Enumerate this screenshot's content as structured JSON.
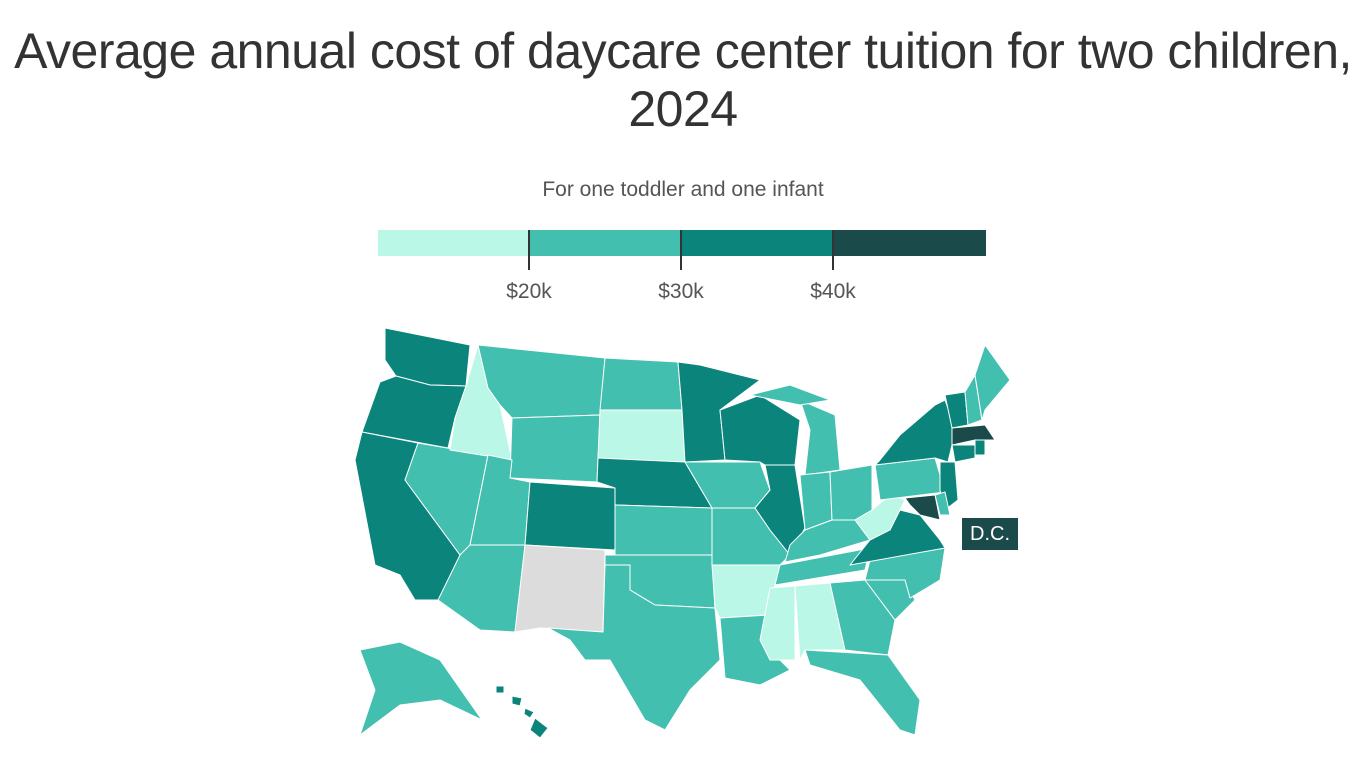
{
  "title": "Average annual cost of daycare center tuition for two children, 2024",
  "subtitle": "For one toddler and one infant",
  "legend": {
    "colors": [
      "#bbf7e6",
      "#43bfb0",
      "#0b847c",
      "#1a4a4a"
    ],
    "no_data_color": "#dcdcdc",
    "ticks": [
      "$20k",
      "$30k",
      "$40k"
    ]
  },
  "map_data": {
    "bins": [
      "Under $20k",
      "$20k–$30k",
      "$30k–$40k",
      "$40k+"
    ],
    "state_bin": {
      "WA": 2,
      "OR": 2,
      "CA": 2,
      "ID": 0,
      "NV": 1,
      "MT": 1,
      "WY": 1,
      "UT": 1,
      "AZ": 1,
      "CO": 2,
      "NM": null,
      "ND": 1,
      "SD": 0,
      "NE": 2,
      "KS": 1,
      "OK": 1,
      "TX": 1,
      "MN": 2,
      "IA": 1,
      "MO": 1,
      "AR": 0,
      "LA": 1,
      "WI": 2,
      "IL": 2,
      "MI": 1,
      "IN": 1,
      "OH": 1,
      "KY": 1,
      "TN": 1,
      "MS": 0,
      "AL": 0,
      "GA": 1,
      "FL": 1,
      "SC": 1,
      "NC": 1,
      "VA": 2,
      "WV": 0,
      "PA": 1,
      "NY": 2,
      "VT": 2,
      "NH": 1,
      "ME": 1,
      "MA": 3,
      "CT": 2,
      "RI": 2,
      "NJ": 2,
      "DE": 1,
      "MD": 3,
      "DC": 3,
      "AK": 1,
      "HI": 2
    }
  },
  "dc_label": "D.C."
}
